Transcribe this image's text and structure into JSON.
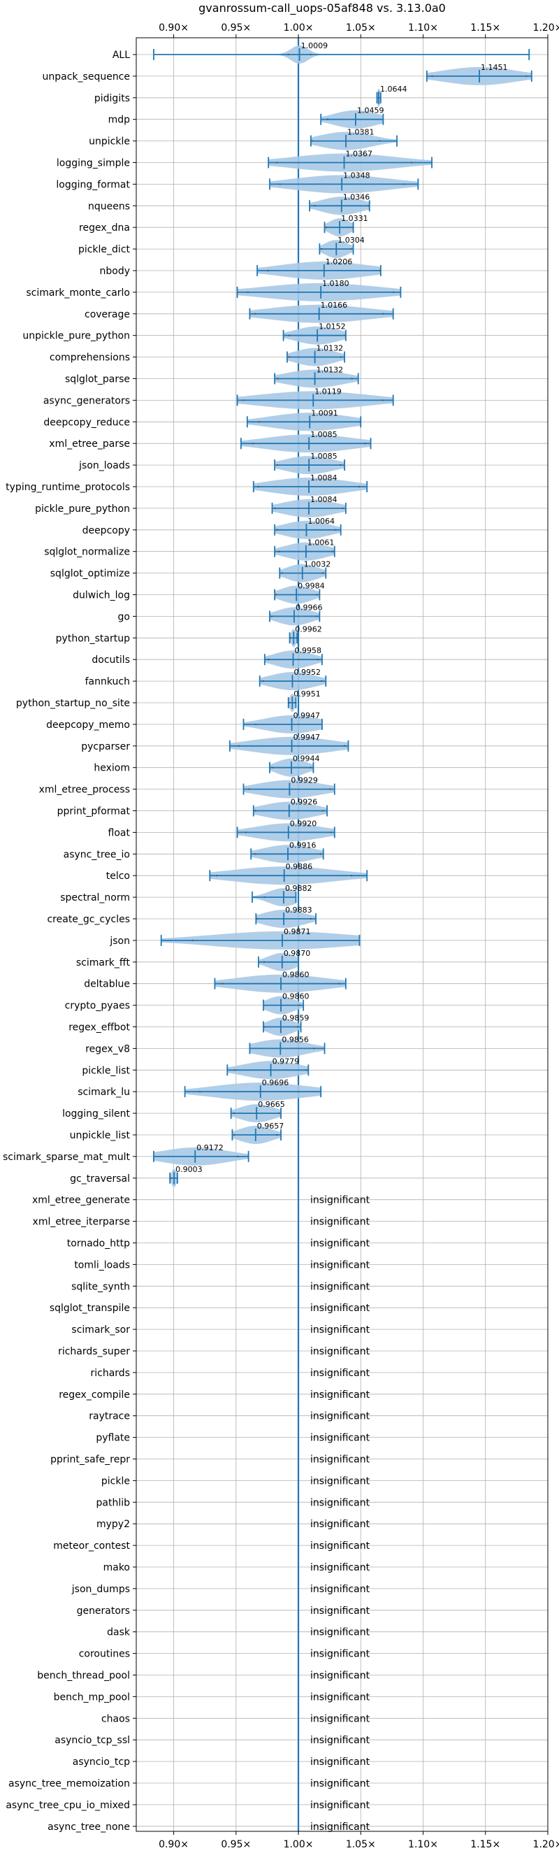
{
  "chart_data": {
    "type": "violin",
    "title": "gvanrossum-call_uops-05af848 vs. 3.13.0a0",
    "xlim": [
      0.87,
      1.2
    ],
    "xticks": [
      {
        "value": 0.9,
        "label": "0.90×"
      },
      {
        "value": 0.95,
        "label": "0.95×"
      },
      {
        "value": 1.0,
        "label": "1.00×"
      },
      {
        "value": 1.05,
        "label": "1.05×"
      },
      {
        "value": 1.1,
        "label": "1.10×"
      },
      {
        "value": 1.15,
        "label": "1.15×"
      },
      {
        "value": 1.2,
        "label": "1.20×"
      }
    ],
    "grid": true,
    "reference_line": 1.0,
    "insignificant_label": "insignificant",
    "benchmarks": [
      {
        "name": "ALL",
        "mean": 1.0009,
        "label": "1.0009",
        "min": 0.884,
        "max": 1.185,
        "spread": 0.01
      },
      {
        "name": "unpack_sequence",
        "mean": 1.1451,
        "label": "1.1451",
        "min": 1.103,
        "max": 1.187,
        "spread": 0.042
      },
      {
        "name": "pidigits",
        "mean": 1.0644,
        "label": "1.0644",
        "min": 1.063,
        "max": 1.066,
        "spread": 0.002
      },
      {
        "name": "mdp",
        "mean": 1.0459,
        "label": "1.0459",
        "min": 1.018,
        "max": 1.068,
        "spread": 0.025
      },
      {
        "name": "unpickle",
        "mean": 1.0381,
        "label": "1.0381",
        "min": 1.01,
        "max": 1.079,
        "spread": 0.03
      },
      {
        "name": "logging_simple",
        "mean": 1.0367,
        "label": "1.0367",
        "min": 0.976,
        "max": 1.107,
        "spread": 0.06
      },
      {
        "name": "logging_format",
        "mean": 1.0348,
        "label": "1.0348",
        "min": 0.977,
        "max": 1.096,
        "spread": 0.055
      },
      {
        "name": "nqueens",
        "mean": 1.0346,
        "label": "1.0346",
        "min": 1.009,
        "max": 1.057,
        "spread": 0.024
      },
      {
        "name": "regex_dna",
        "mean": 1.0331,
        "label": "1.0331",
        "min": 1.021,
        "max": 1.044,
        "spread": 0.012
      },
      {
        "name": "pickle_dict",
        "mean": 1.0304,
        "label": "1.0304",
        "min": 1.017,
        "max": 1.044,
        "spread": 0.013
      },
      {
        "name": "nbody",
        "mean": 1.0206,
        "label": "1.0206",
        "min": 0.967,
        "max": 1.066,
        "spread": 0.05
      },
      {
        "name": "scimark_monte_carlo",
        "mean": 1.018,
        "label": "1.0180",
        "min": 0.951,
        "max": 1.082,
        "spread": 0.065
      },
      {
        "name": "coverage",
        "mean": 1.0166,
        "label": "1.0166",
        "min": 0.961,
        "max": 1.076,
        "spread": 0.057
      },
      {
        "name": "unpickle_pure_python",
        "mean": 1.0152,
        "label": "1.0152",
        "min": 0.988,
        "max": 1.038,
        "spread": 0.025
      },
      {
        "name": "comprehensions",
        "mean": 1.0132,
        "label": "1.0132",
        "min": 0.991,
        "max": 1.037,
        "spread": 0.023
      },
      {
        "name": "sqlglot_parse",
        "mean": 1.0132,
        "label": "1.0132",
        "min": 0.981,
        "max": 1.048,
        "spread": 0.033
      },
      {
        "name": "async_generators",
        "mean": 1.0119,
        "label": "1.0119",
        "min": 0.951,
        "max": 1.076,
        "spread": 0.062
      },
      {
        "name": "deepcopy_reduce",
        "mean": 1.0091,
        "label": "1.0091",
        "min": 0.959,
        "max": 1.05,
        "spread": 0.045
      },
      {
        "name": "xml_etree_parse",
        "mean": 1.0085,
        "label": "1.0085",
        "min": 0.954,
        "max": 1.058,
        "spread": 0.05
      },
      {
        "name": "json_loads",
        "mean": 1.0085,
        "label": "1.0085",
        "min": 0.981,
        "max": 1.037,
        "spread": 0.028
      },
      {
        "name": "typing_runtime_protocols",
        "mean": 1.0084,
        "label": "1.0084",
        "min": 0.964,
        "max": 1.055,
        "spread": 0.045
      },
      {
        "name": "pickle_pure_python",
        "mean": 1.0084,
        "label": "1.0084",
        "min": 0.979,
        "max": 1.038,
        "spread": 0.03
      },
      {
        "name": "deepcopy",
        "mean": 1.0064,
        "label": "1.0064",
        "min": 0.981,
        "max": 1.034,
        "spread": 0.026
      },
      {
        "name": "sqlglot_normalize",
        "mean": 1.0061,
        "label": "1.0061",
        "min": 0.981,
        "max": 1.029,
        "spread": 0.024
      },
      {
        "name": "sqlglot_optimize",
        "mean": 1.0032,
        "label": "1.0032",
        "min": 0.985,
        "max": 1.022,
        "spread": 0.018
      },
      {
        "name": "dulwich_log",
        "mean": 0.9984,
        "label": "0.9984",
        "min": 0.981,
        "max": 1.017,
        "spread": 0.018
      },
      {
        "name": "go",
        "mean": 0.9966,
        "label": "0.9966",
        "min": 0.977,
        "max": 1.017,
        "spread": 0.02
      },
      {
        "name": "python_startup",
        "mean": 0.9962,
        "label": "0.9962",
        "min": 0.993,
        "max": 0.999,
        "spread": 0.003
      },
      {
        "name": "docutils",
        "mean": 0.9958,
        "label": "0.9958",
        "min": 0.973,
        "max": 1.019,
        "spread": 0.022
      },
      {
        "name": "fannkuch",
        "mean": 0.9952,
        "label": "0.9952",
        "min": 0.969,
        "max": 1.022,
        "spread": 0.026
      },
      {
        "name": "python_startup_no_site",
        "mean": 0.9951,
        "label": "0.9951",
        "min": 0.992,
        "max": 0.998,
        "spread": 0.003
      },
      {
        "name": "deepcopy_memo",
        "mean": 0.9947,
        "label": "0.9947",
        "min": 0.956,
        "max": 1.019,
        "spread": 0.032
      },
      {
        "name": "pycparser",
        "mean": 0.9947,
        "label": "0.9947",
        "min": 0.945,
        "max": 1.04,
        "spread": 0.047
      },
      {
        "name": "hexiom",
        "mean": 0.9944,
        "label": "0.9944",
        "min": 0.977,
        "max": 1.012,
        "spread": 0.017
      },
      {
        "name": "xml_etree_process",
        "mean": 0.9929,
        "label": "0.9929",
        "min": 0.956,
        "max": 1.029,
        "spread": 0.036
      },
      {
        "name": "pprint_pformat",
        "mean": 0.9926,
        "label": "0.9926",
        "min": 0.964,
        "max": 1.023,
        "spread": 0.03
      },
      {
        "name": "float",
        "mean": 0.992,
        "label": "0.9920",
        "min": 0.951,
        "max": 1.029,
        "spread": 0.038
      },
      {
        "name": "async_tree_io",
        "mean": 0.9916,
        "label": "0.9916",
        "min": 0.962,
        "max": 1.02,
        "spread": 0.029
      },
      {
        "name": "telco",
        "mean": 0.9886,
        "label": "0.9886",
        "min": 0.929,
        "max": 1.055,
        "spread": 0.06
      },
      {
        "name": "spectral_norm",
        "mean": 0.9882,
        "label": "0.9882",
        "min": 0.963,
        "max": 0.998,
        "spread": 0.017
      },
      {
        "name": "create_gc_cycles",
        "mean": 0.9883,
        "label": "0.9883",
        "min": 0.966,
        "max": 1.014,
        "spread": 0.024
      },
      {
        "name": "json",
        "mean": 0.9871,
        "label": "0.9871",
        "min": 0.89,
        "max": 1.049,
        "spread": 0.08
      },
      {
        "name": "scimark_fft",
        "mean": 0.987,
        "label": "0.9870",
        "min": 0.968,
        "max": 1.0,
        "spread": 0.016
      },
      {
        "name": "deltablue",
        "mean": 0.986,
        "label": "0.9860",
        "min": 0.933,
        "max": 1.038,
        "spread": 0.052
      },
      {
        "name": "crypto_pyaes",
        "mean": 0.986,
        "label": "0.9860",
        "min": 0.972,
        "max": 1.004,
        "spread": 0.016
      },
      {
        "name": "regex_effbot",
        "mean": 0.9859,
        "label": "0.9859",
        "min": 0.972,
        "max": 1.002,
        "spread": 0.015
      },
      {
        "name": "regex_v8",
        "mean": 0.9856,
        "label": "0.9856",
        "min": 0.961,
        "max": 1.021,
        "spread": 0.03
      },
      {
        "name": "pickle_list",
        "mean": 0.9779,
        "label": "0.9779",
        "min": 0.943,
        "max": 1.008,
        "spread": 0.032
      },
      {
        "name": "scimark_lu",
        "mean": 0.9696,
        "label": "0.9696",
        "min": 0.909,
        "max": 1.018,
        "spread": 0.054
      },
      {
        "name": "logging_silent",
        "mean": 0.9665,
        "label": "0.9665",
        "min": 0.946,
        "max": 0.986,
        "spread": 0.02
      },
      {
        "name": "unpickle_list",
        "mean": 0.9657,
        "label": "0.9657",
        "min": 0.947,
        "max": 0.986,
        "spread": 0.019
      },
      {
        "name": "scimark_sparse_mat_mult",
        "mean": 0.9172,
        "label": "0.9172",
        "min": 0.884,
        "max": 0.96,
        "spread": 0.038
      },
      {
        "name": "gc_traversal",
        "mean": 0.9003,
        "label": "0.9003",
        "min": 0.897,
        "max": 0.903,
        "spread": 0.003
      },
      {
        "name": "xml_etree_generate",
        "insignificant": true
      },
      {
        "name": "xml_etree_iterparse",
        "insignificant": true
      },
      {
        "name": "tornado_http",
        "insignificant": true
      },
      {
        "name": "tomli_loads",
        "insignificant": true
      },
      {
        "name": "sqlite_synth",
        "insignificant": true
      },
      {
        "name": "sqlglot_transpile",
        "insignificant": true
      },
      {
        "name": "scimark_sor",
        "insignificant": true
      },
      {
        "name": "richards_super",
        "insignificant": true
      },
      {
        "name": "richards",
        "insignificant": true
      },
      {
        "name": "regex_compile",
        "insignificant": true
      },
      {
        "name": "raytrace",
        "insignificant": true
      },
      {
        "name": "pyflate",
        "insignificant": true
      },
      {
        "name": "pprint_safe_repr",
        "insignificant": true
      },
      {
        "name": "pickle",
        "insignificant": true
      },
      {
        "name": "pathlib",
        "insignificant": true
      },
      {
        "name": "mypy2",
        "insignificant": true
      },
      {
        "name": "meteor_contest",
        "insignificant": true
      },
      {
        "name": "mako",
        "insignificant": true
      },
      {
        "name": "json_dumps",
        "insignificant": true
      },
      {
        "name": "generators",
        "insignificant": true
      },
      {
        "name": "dask",
        "insignificant": true
      },
      {
        "name": "coroutines",
        "insignificant": true
      },
      {
        "name": "bench_thread_pool",
        "insignificant": true
      },
      {
        "name": "bench_mp_pool",
        "insignificant": true
      },
      {
        "name": "chaos",
        "insignificant": true
      },
      {
        "name": "asyncio_tcp_ssl",
        "insignificant": true
      },
      {
        "name": "asyncio_tcp",
        "insignificant": true
      },
      {
        "name": "async_tree_memoization",
        "insignificant": true
      },
      {
        "name": "async_tree_cpu_io_mixed",
        "insignificant": true
      },
      {
        "name": "async_tree_none",
        "insignificant": true
      }
    ],
    "colors": {
      "violin_fill": "#a9c9e6",
      "whisker": "#1f77b4",
      "grid": "#b0b0b0",
      "text": "#000000"
    }
  }
}
